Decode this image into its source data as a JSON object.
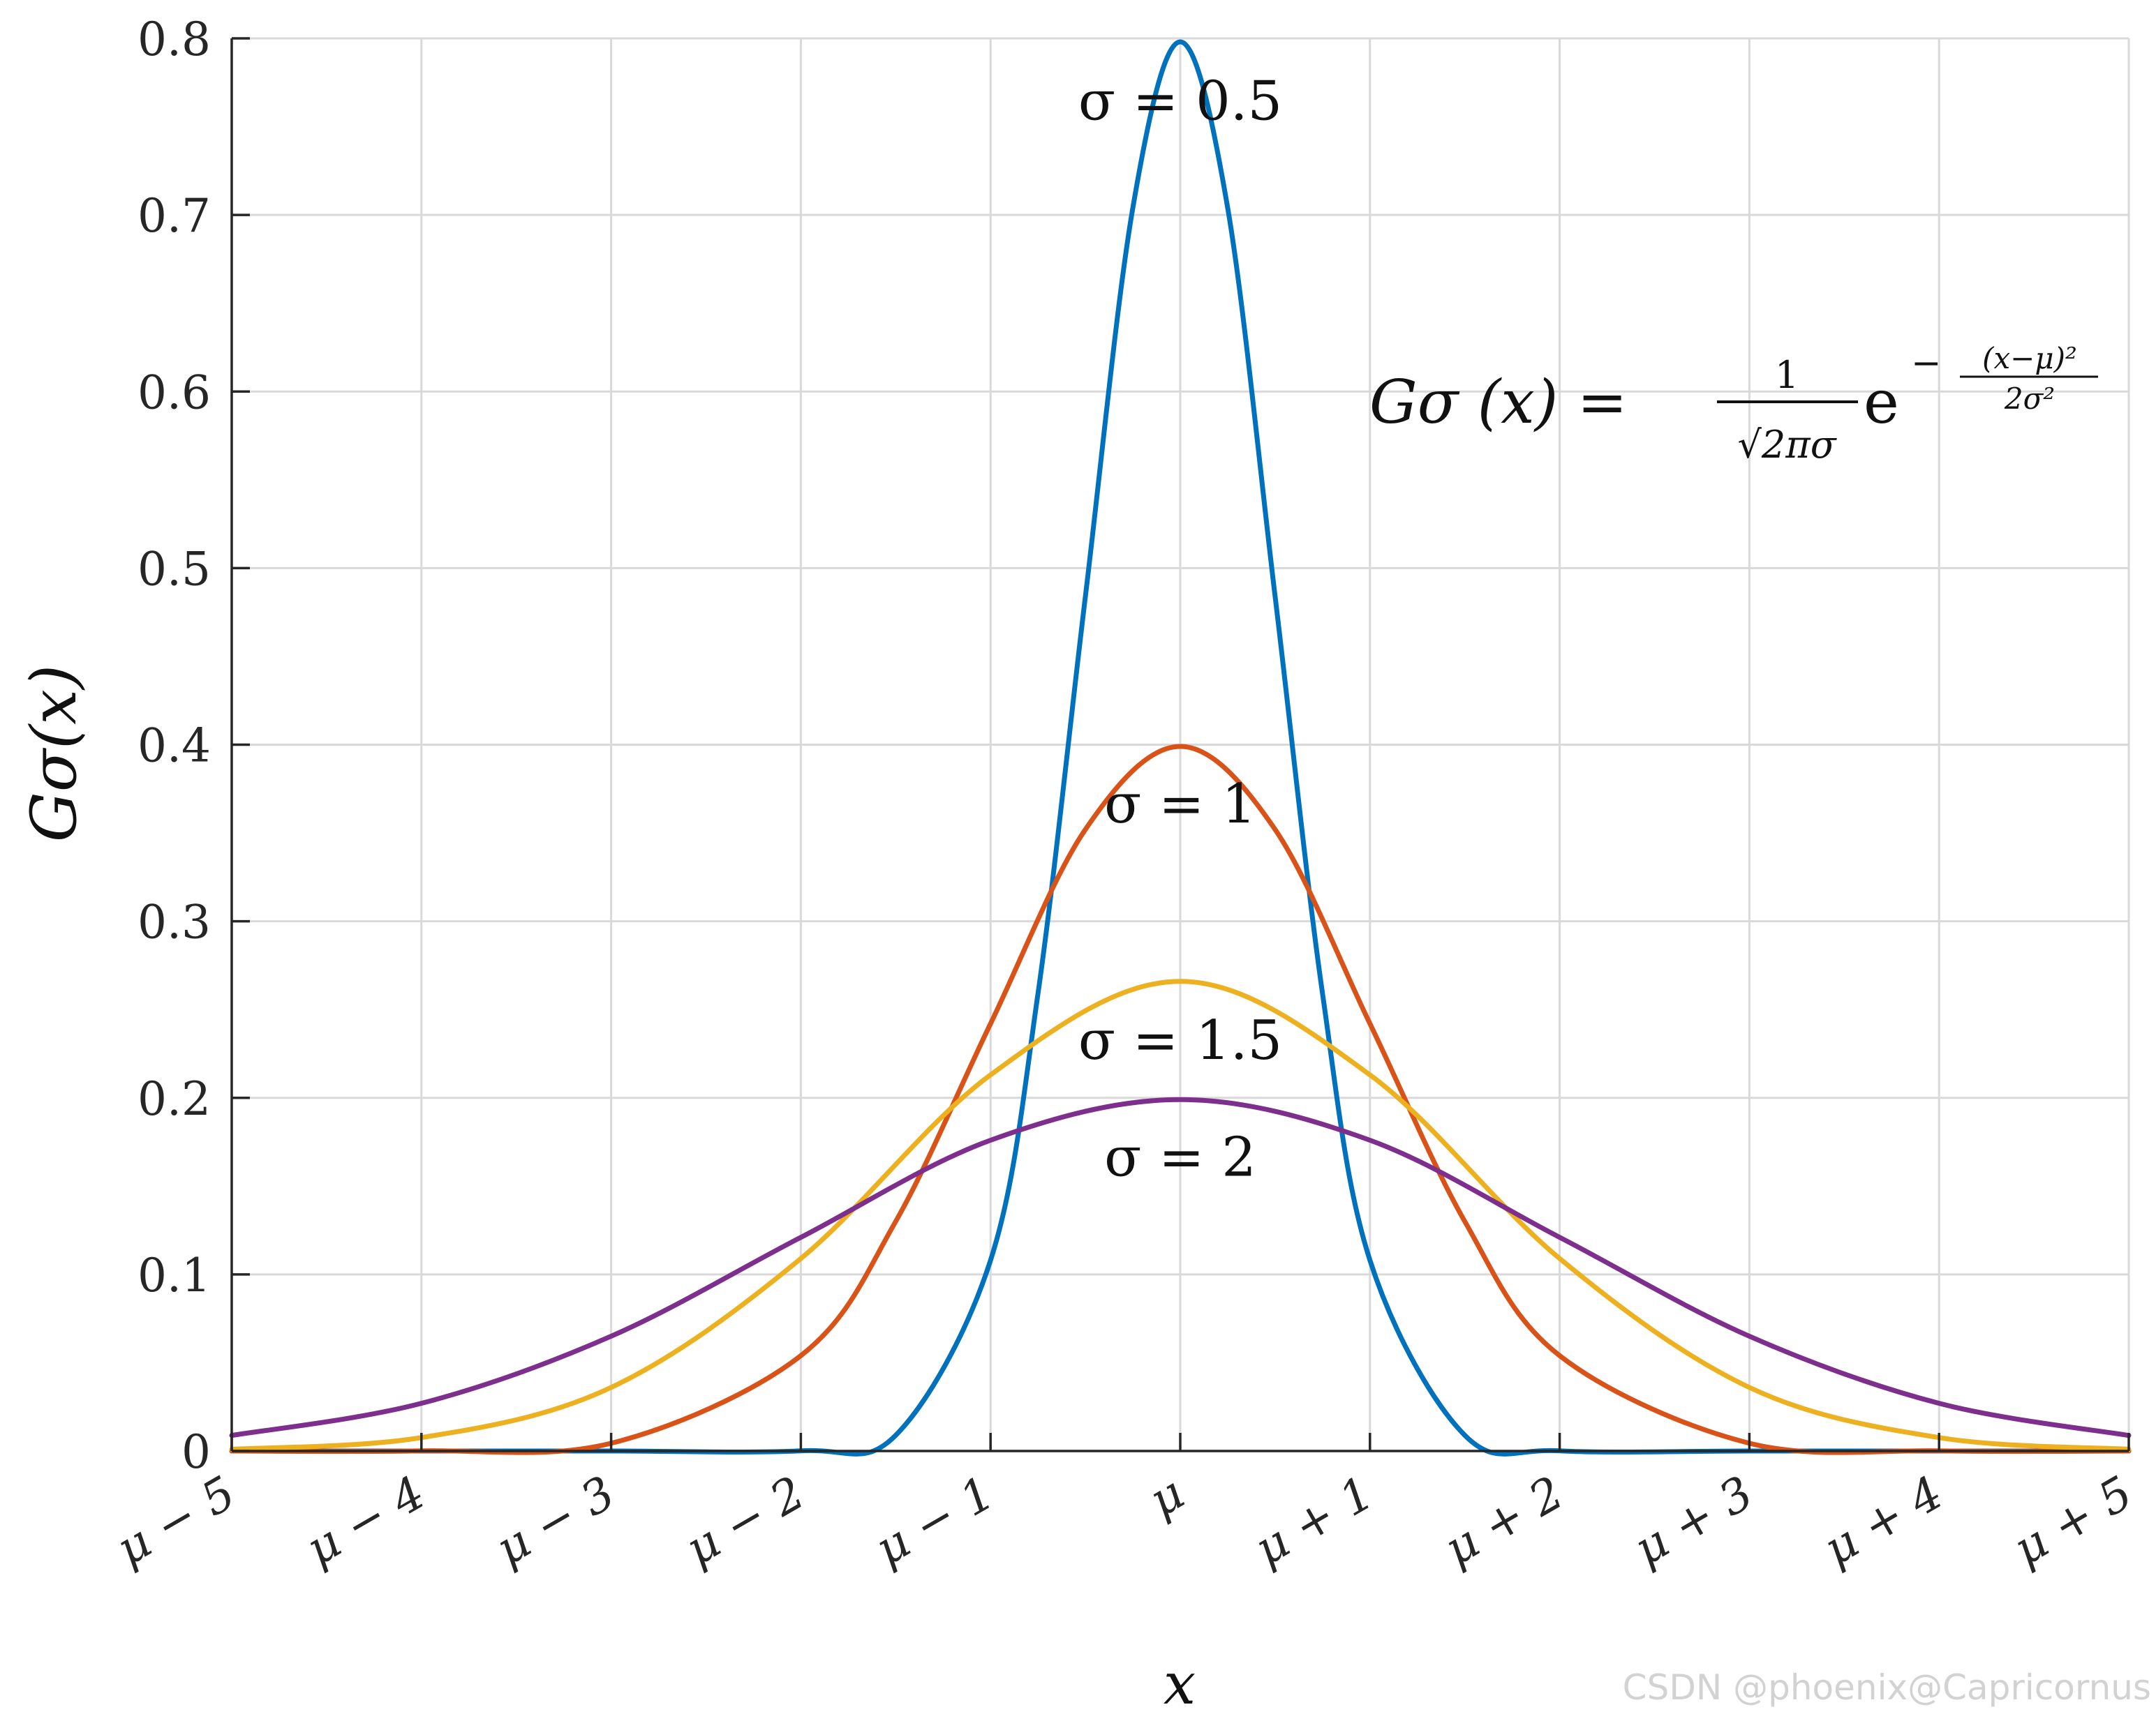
{
  "chart_data": {
    "type": "line",
    "title": "",
    "xlabel": "x",
    "ylabel": "Gσ(x)",
    "xlim": [
      -5,
      5
    ],
    "ylim": [
      0,
      0.8
    ],
    "grid": true,
    "legend": "none",
    "x_ticks": [
      -5,
      -4,
      -3,
      -2,
      -1,
      0,
      1,
      2,
      3,
      4,
      5
    ],
    "x_tick_labels": [
      "μ − 5",
      "μ − 4",
      "μ − 3",
      "μ − 2",
      "μ − 1",
      "μ",
      "μ + 1",
      "μ + 2",
      "μ + 3",
      "μ + 4",
      "μ + 5"
    ],
    "y_ticks": [
      0,
      0.1,
      0.2,
      0.3,
      0.4,
      0.5,
      0.6,
      0.7,
      0.8
    ],
    "y_tick_labels": [
      "0",
      "0.1",
      "0.2",
      "0.3",
      "0.4",
      "0.5",
      "0.6",
      "0.7",
      "0.8"
    ],
    "series": [
      {
        "sigma": 0.5,
        "label": "σ = 0.5",
        "color": "#0072BD",
        "label_pos": [
          0,
          0.765
        ],
        "x": [
          -5,
          -4,
          -3,
          -2,
          -1.5,
          -1,
          -0.75,
          -0.5,
          -0.25,
          0,
          0.25,
          0.5,
          0.75,
          1,
          1.5,
          2,
          3,
          4,
          5
        ],
        "values": [
          0,
          0,
          0,
          0.0001,
          0.0089,
          0.108,
          0.259,
          0.484,
          0.704,
          0.798,
          0.704,
          0.484,
          0.259,
          0.108,
          0.0089,
          0.0001,
          0,
          0,
          0
        ]
      },
      {
        "sigma": 1,
        "label": "σ = 1",
        "color": "#D95319",
        "label_pos": [
          0,
          0.367
        ],
        "x": [
          -5,
          -4,
          -3,
          -2,
          -1.5,
          -1,
          -0.5,
          0,
          0.5,
          1,
          1.5,
          2,
          3,
          4,
          5
        ],
        "values": [
          0,
          0.0001,
          0.0044,
          0.054,
          0.13,
          0.242,
          0.352,
          0.399,
          0.352,
          0.242,
          0.13,
          0.054,
          0.0044,
          0.0001,
          0
        ]
      },
      {
        "sigma": 1.5,
        "label": "σ = 1.5",
        "color": "#EDB120",
        "label_pos": [
          0,
          0.233
        ],
        "x": [
          -5,
          -4,
          -3,
          -2,
          -1,
          0,
          1,
          2,
          3,
          4,
          5
        ],
        "values": [
          0.001,
          0.0076,
          0.036,
          0.109,
          0.213,
          0.266,
          0.213,
          0.109,
          0.036,
          0.0076,
          0.001
        ]
      },
      {
        "sigma": 2,
        "label": "σ = 2",
        "color": "#7E2F8E",
        "label_pos": [
          0,
          0.167
        ],
        "x": [
          -5,
          -4,
          -3,
          -2,
          -1,
          0,
          1,
          2,
          3,
          4,
          5
        ],
        "values": [
          0.0088,
          0.027,
          0.065,
          0.121,
          0.176,
          0.199,
          0.176,
          0.121,
          0.065,
          0.027,
          0.0088
        ]
      }
    ],
    "annotation": {
      "lhs": "Gσ (x) =",
      "frac_num": "1",
      "frac_den": "√2πσ",
      "base": "e",
      "exp_sign": "−",
      "exp_num": "(x−μ)²",
      "exp_den": "2σ²"
    }
  },
  "watermark": "CSDN @phoenix@Capricornus"
}
